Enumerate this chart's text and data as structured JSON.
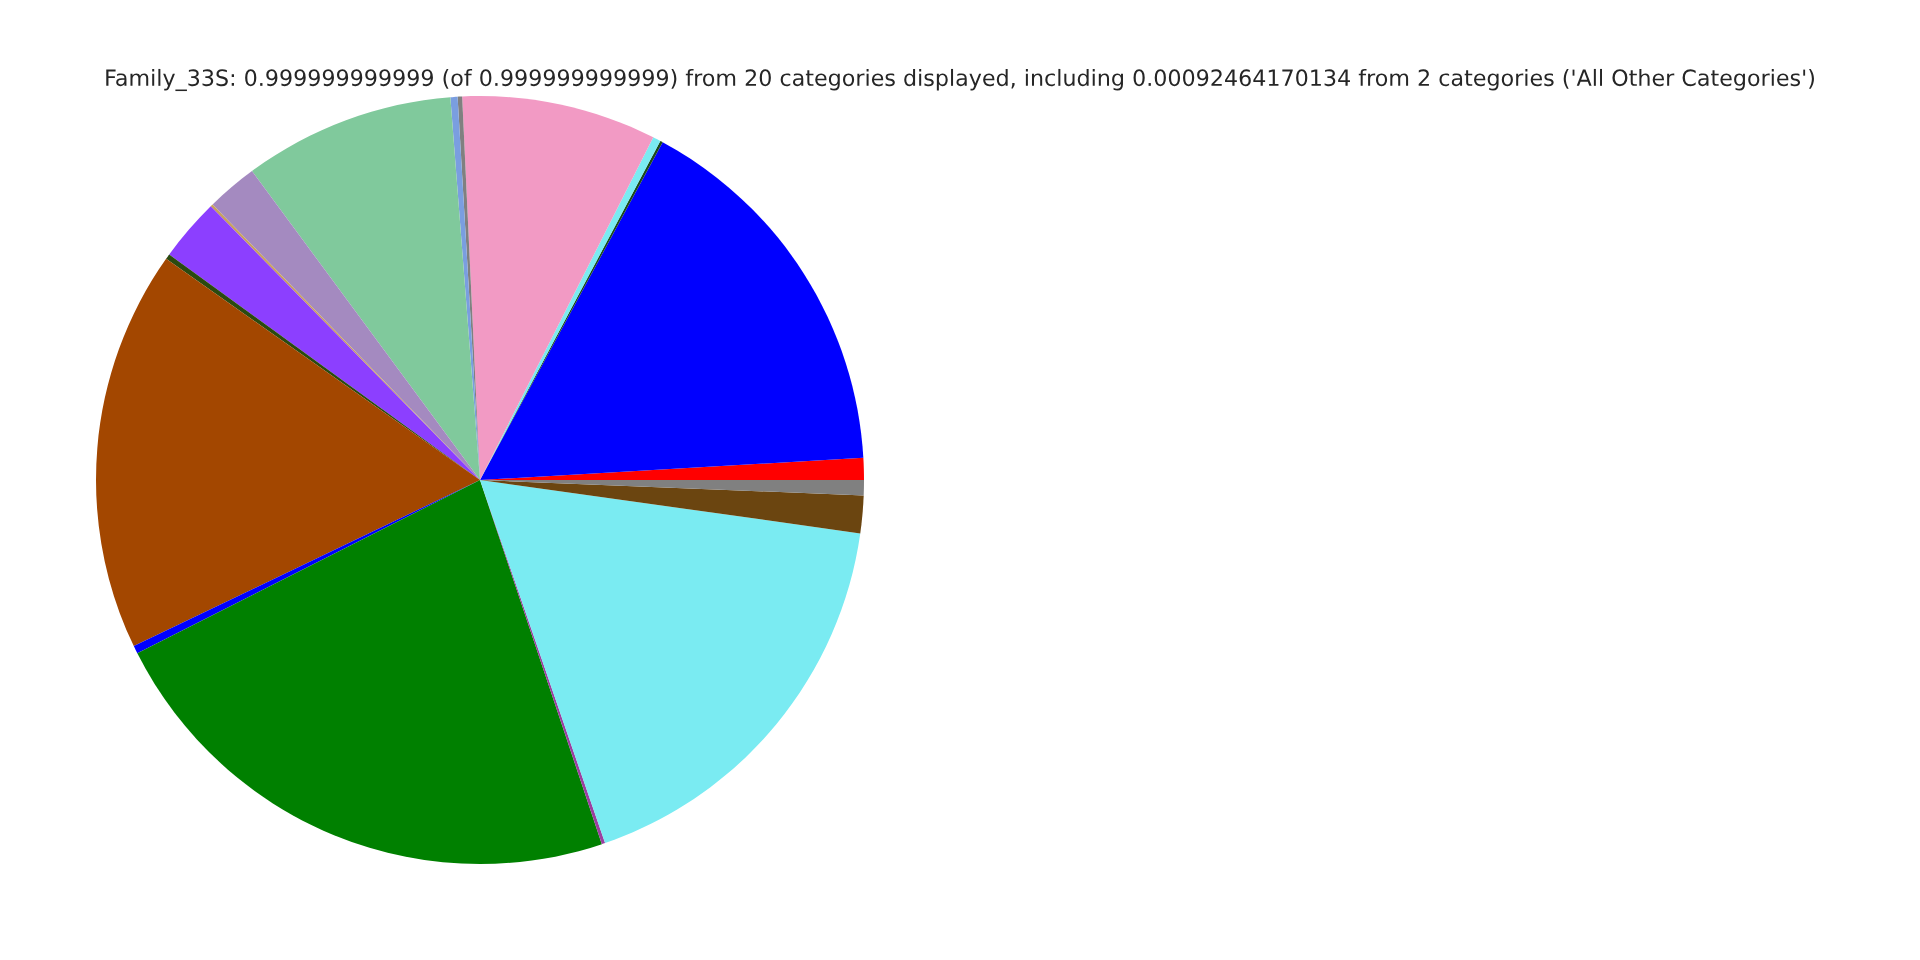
{
  "chart_data": {
    "type": "pie",
    "title": "Family_33S: 0.999999999999 (of 0.999999999999) from 20 categories displayed, including 0.00092464170134 from 2 categories ('All Other Categories')",
    "categories": [
      null,
      null,
      null,
      null,
      null,
      null,
      null,
      null,
      null,
      null,
      null,
      null,
      null,
      null,
      null,
      null,
      null,
      null,
      null
    ],
    "values": [
      0.92,
      16.19,
      0.11,
      0.33,
      8.19,
      0.19,
      0.3,
      8.89,
      2.14,
      0.11,
      2.64,
      0.22,
      16.89,
      0.33,
      22.69,
      0.14,
      17.5,
      1.58,
      0.64
    ],
    "colors": [
      "#ff0000",
      "#0000ff",
      "#1a4a1a",
      "#7aebf2",
      "#f29ac4",
      "#808080",
      "#7a9ee0",
      "#80c99c",
      "#a48ac0",
      "#c8a060",
      "#8c3fff",
      "#2a4a10",
      "#a34700",
      "#0000ff",
      "#008000",
      "#9b3fa0",
      "#7aebf2",
      "#6b4510",
      "#808080"
    ]
  }
}
